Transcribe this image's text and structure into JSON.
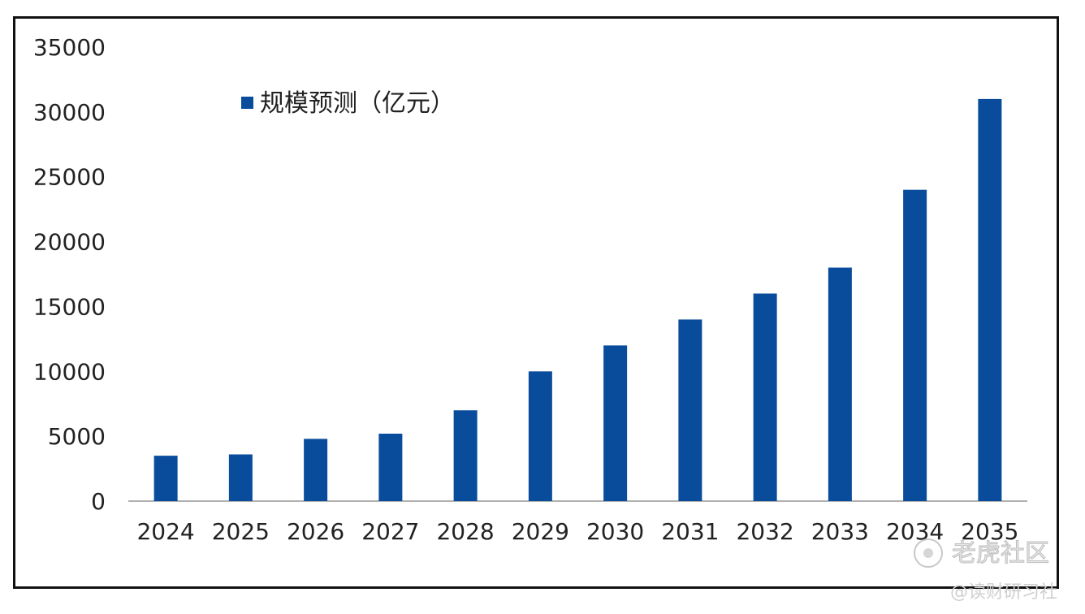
{
  "chart_data": {
    "type": "bar",
    "categories": [
      "2024",
      "2025",
      "2026",
      "2027",
      "2028",
      "2029",
      "2030",
      "2031",
      "2032",
      "2033",
      "2034",
      "2035"
    ],
    "series": [
      {
        "name": "规模预测（亿元）",
        "values": [
          3500,
          3600,
          4800,
          5200,
          7000,
          10000,
          12000,
          14000,
          16000,
          18000,
          24000,
          31000
        ]
      }
    ],
    "ylim": [
      0,
      35000
    ],
    "yticks": [
      0,
      5000,
      10000,
      15000,
      20000,
      25000,
      30000,
      35000
    ],
    "legend_position": "top-left",
    "grid": false,
    "colors": {
      "bar": "#0a4c9c",
      "axis": "#b0b0b0"
    }
  },
  "watermark": {
    "main": "老虎社区",
    "sub": "@读财研习社"
  }
}
